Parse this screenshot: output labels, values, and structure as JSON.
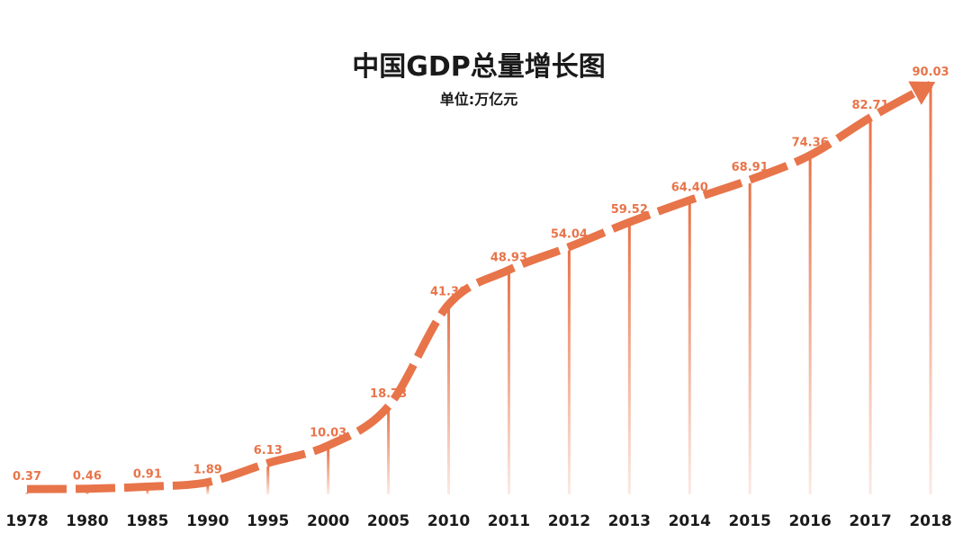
{
  "chart_data": {
    "type": "line",
    "title": "中国GDP总量增长图",
    "subtitle": "单位:万亿元",
    "categories": [
      "1978",
      "1980",
      "1985",
      "1990",
      "1995",
      "2000",
      "2005",
      "2010",
      "2011",
      "2012",
      "2013",
      "2014",
      "2015",
      "2016",
      "2017",
      "2018"
    ],
    "values": [
      0.37,
      0.46,
      0.91,
      1.89,
      6.13,
      10.03,
      18.73,
      41.3,
      48.93,
      54.04,
      59.52,
      64.4,
      68.91,
      74.36,
      82.71,
      90.03
    ],
    "value_labels": [
      "0.37",
      "0.46",
      "0.91",
      "1.89",
      "6.13",
      "10.03",
      "18.73",
      "41.30",
      "48.93",
      "54.04",
      "59.52",
      "64.40",
      "68.91",
      "74.36",
      "82.71",
      "90.03"
    ],
    "ylim": [
      0,
      90.03
    ],
    "grid": false,
    "legend": "none",
    "line_style": "dashed-arrow",
    "colors": {
      "line": "#e8744a",
      "stem": "#e8744a",
      "label": "#e8744a",
      "title": "#1a1a1a"
    }
  }
}
